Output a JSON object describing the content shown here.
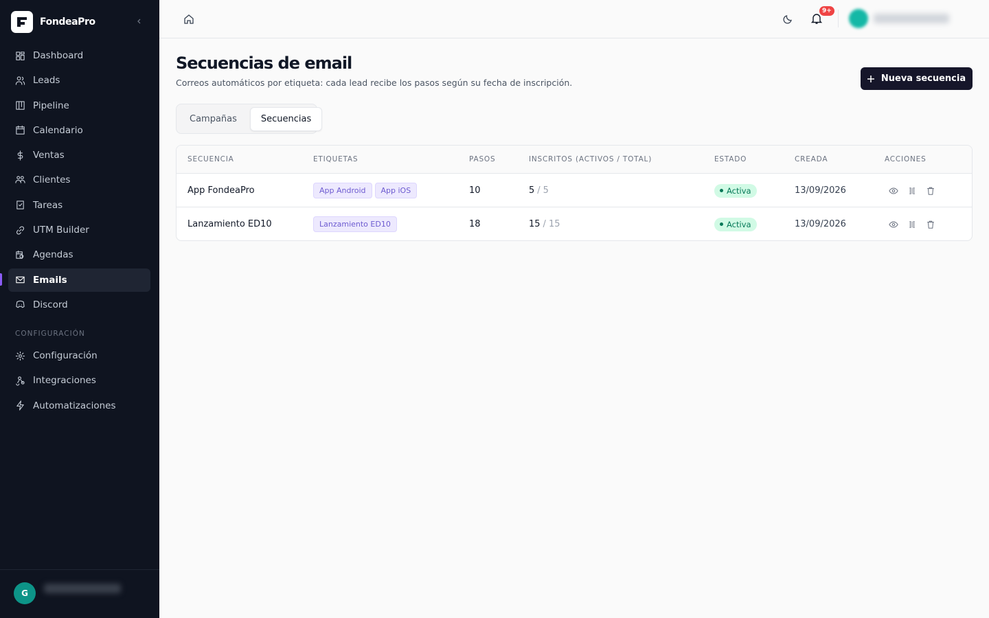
{
  "sidebar": {
    "brand": "FondeaPro",
    "nav": [
      "Dashboard",
      "Leads",
      "Pipeline",
      "Calendario",
      "Ventas",
      "Clientes",
      "Tareas",
      "UTM Builder",
      "Agendas",
      "Emails",
      "Discord"
    ],
    "section": "CONFIGURACIÓN",
    "config_nav": [
      "Configuración",
      "Integraciones",
      "Automatizaciones"
    ],
    "user_initial": "G"
  },
  "topbar": {
    "notifications": "9+"
  },
  "header": {
    "title": "Secuencias de email",
    "subtitle": "Correos automáticos por etiqueta: cada lead recibe los pasos según su fecha de inscripción.",
    "button": "Nueva secuencia"
  },
  "tabs": [
    "Campañas",
    "Secuencias"
  ],
  "table": {
    "columns": [
      "SECUENCIA",
      "ETIQUETAS",
      "PASOS",
      "INSCRITOS (ACTIVOS / TOTAL)",
      "ESTADO",
      "CREADA",
      "ACCIONES"
    ],
    "enrolled_separator": "/",
    "rows": [
      {
        "name": "App FondeaPro",
        "tags": [
          "App Android",
          "App iOS"
        ],
        "steps": 10,
        "active": 5,
        "total": 5,
        "status": "Activa",
        "created": "13/09/2026"
      },
      {
        "name": "Lanzamiento ED10",
        "tags": [
          "Lanzamiento ED10"
        ],
        "steps": 18,
        "active": 15,
        "total": 15,
        "status": "Activa",
        "created": "13/09/2026"
      }
    ]
  }
}
